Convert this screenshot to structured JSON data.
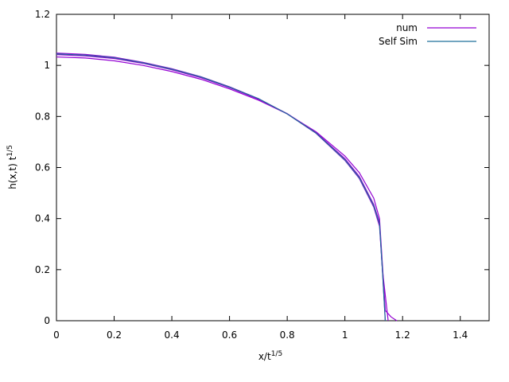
{
  "chart_data": {
    "type": "line",
    "xlabel": {
      "text": "x/t",
      "superscript": "1/5"
    },
    "ylabel": {
      "text": "h(x,t) t",
      "superscript": "1/5"
    },
    "xlim": [
      0,
      1.5
    ],
    "xticks": [
      0,
      0.2,
      0.4,
      0.6,
      0.8,
      1,
      1.2,
      1.4
    ],
    "ylim": [
      0,
      1.2
    ],
    "yticks": [
      0,
      0.2,
      0.4,
      0.6,
      0.8,
      1,
      1.2
    ],
    "legend": "top-right",
    "series": [
      {
        "name": "num",
        "color": "#9400d3",
        "x": [
          0,
          0.1,
          0.2,
          0.3,
          0.4,
          0.5,
          0.6,
          0.7,
          0.8,
          0.9,
          1.0,
          1.05,
          1.1,
          1.12,
          1.14,
          1.16,
          1.18
        ],
        "values": [
          1.033,
          1.029,
          1.018,
          1.0,
          0.976,
          0.946,
          0.908,
          0.864,
          0.81,
          0.74,
          0.645,
          0.58,
          0.48,
          0.4,
          0.04,
          0.015,
          0
        ]
      },
      {
        "name": "num",
        "color": "#9400d3",
        "x": [
          0,
          0.1,
          0.2,
          0.3,
          0.4,
          0.5,
          0.6,
          0.7,
          0.8,
          0.9,
          1.0,
          1.05,
          1.1,
          1.12,
          1.13,
          1.15
        ],
        "values": [
          1.042,
          1.037,
          1.027,
          1.008,
          0.983,
          0.952,
          0.913,
          0.868,
          0.811,
          0.737,
          0.635,
          0.565,
          0.455,
          0.385,
          0.2,
          0
        ]
      },
      {
        "name": "num",
        "color": "#9400d3",
        "x": [
          0,
          0.1,
          0.2,
          0.3,
          0.4,
          0.5,
          0.6,
          0.7,
          0.8,
          0.9,
          1.0,
          1.05,
          1.1,
          1.12,
          1.13,
          1.14
        ],
        "values": [
          1.048,
          1.043,
          1.032,
          1.012,
          0.987,
          0.956,
          0.916,
          0.87,
          0.81,
          0.734,
          0.628,
          0.557,
          0.445,
          0.37,
          0.2,
          0
        ]
      },
      {
        "name": "Self Sim",
        "color": "#1f6f9a",
        "x": [
          0,
          0.1,
          0.2,
          0.3,
          0.4,
          0.5,
          0.6,
          0.7,
          0.8,
          0.9,
          1.0,
          1.05,
          1.1,
          1.12,
          1.13,
          1.14
        ],
        "values": [
          1.045,
          1.04,
          1.03,
          1.01,
          0.985,
          0.955,
          0.915,
          0.87,
          0.81,
          0.735,
          0.63,
          0.56,
          0.45,
          0.38,
          0.2,
          0
        ]
      }
    ]
  }
}
